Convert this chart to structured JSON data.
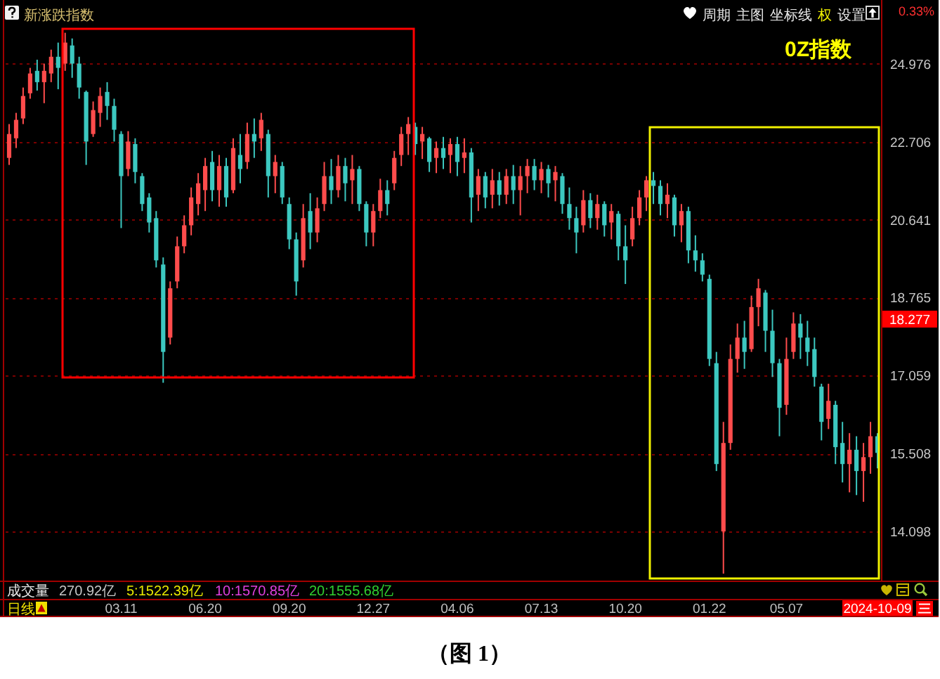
{
  "chart_data": {
    "type": "candlestick",
    "title": "新涨跌指数",
    "subtitle": "0Z指数",
    "categories": [
      null,
      null,
      null,
      null,
      null,
      null,
      null,
      null,
      null,
      null,
      null,
      null,
      null,
      null,
      null,
      null,
      "03.11",
      null,
      null,
      null,
      null,
      null,
      null,
      null,
      null,
      null,
      null,
      null,
      "06.20",
      null,
      null,
      null,
      null,
      null,
      null,
      null,
      null,
      null,
      null,
      null,
      "09.20",
      null,
      null,
      null,
      null,
      null,
      null,
      null,
      null,
      null,
      null,
      null,
      "12.27",
      null,
      null,
      null,
      null,
      null,
      null,
      null,
      null,
      null,
      null,
      null,
      "04.06",
      null,
      null,
      null,
      null,
      null,
      null,
      null,
      null,
      null,
      null,
      null,
      "07.13",
      null,
      null,
      null,
      null,
      null,
      null,
      null,
      null,
      null,
      null,
      null,
      "10.20",
      null,
      null,
      null,
      null,
      null,
      null,
      null,
      null,
      null,
      null,
      null,
      "01.22",
      null,
      null,
      null,
      null,
      null,
      null,
      null,
      null,
      null,
      null,
      "05.07",
      null,
      null,
      null,
      null,
      null,
      null,
      null,
      null,
      null,
      null,
      null,
      null,
      "2024-10-09"
    ],
    "ohlc": [
      [
        22.26,
        23.2,
        22.07,
        22.92
      ],
      [
        22.8,
        23.52,
        22.53,
        23.32
      ],
      [
        23.36,
        24.26,
        23.2,
        24.01
      ],
      [
        24.09,
        24.85,
        23.93,
        24.68
      ],
      [
        24.76,
        25.1,
        24.17,
        24.42
      ],
      [
        24.42,
        24.98,
        23.8,
        24.76
      ],
      [
        24.68,
        25.41,
        24.42,
        25.19
      ],
      [
        25.19,
        25.63,
        24.21,
        24.85
      ],
      [
        24.98,
        25.94,
        24.76,
        25.63
      ],
      [
        25.54,
        25.76,
        24.55,
        24.98
      ],
      [
        24.98,
        25.19,
        23.93,
        24.26
      ],
      [
        24.13,
        24.17,
        22.07,
        22.71
      ],
      [
        22.92,
        23.85,
        22.84,
        23.6
      ],
      [
        23.52,
        24.26,
        23.12,
        24.01
      ],
      [
        24.13,
        24.42,
        23.32,
        23.72
      ],
      [
        23.72,
        23.93,
        22.71,
        23.04
      ],
      [
        22.92,
        23.0,
        20.43,
        21.77
      ],
      [
        21.96,
        23.0,
        21.77,
        22.71
      ],
      [
        22.64,
        22.8,
        21.58,
        21.88
      ],
      [
        21.77,
        21.85,
        20.86,
        21.04
      ],
      [
        21.21,
        21.32,
        20.32,
        20.57
      ],
      [
        20.68,
        20.86,
        19.47,
        19.64
      ],
      [
        19.54,
        19.71,
        16.91,
        17.56
      ],
      [
        17.87,
        19.14,
        17.72,
        18.98
      ],
      [
        19.14,
        20.22,
        18.98,
        19.98
      ],
      [
        19.98,
        20.75,
        19.81,
        20.5
      ],
      [
        20.5,
        21.47,
        20.25,
        21.21
      ],
      [
        21.04,
        21.85,
        20.75,
        21.58
      ],
      [
        21.4,
        22.26,
        20.86,
        22.04
      ],
      [
        22.15,
        22.45,
        21.11,
        21.4
      ],
      [
        21.4,
        22.34,
        20.97,
        22.04
      ],
      [
        22.04,
        22.26,
        20.97,
        21.21
      ],
      [
        21.4,
        22.8,
        21.32,
        22.53
      ],
      [
        22.34,
        22.92,
        21.58,
        21.96
      ],
      [
        22.15,
        23.24,
        21.96,
        22.92
      ],
      [
        22.92,
        23.36,
        22.26,
        22.71
      ],
      [
        22.8,
        23.52,
        22.45,
        23.32
      ],
      [
        22.92,
        23.04,
        21.21,
        21.77
      ],
      [
        21.77,
        22.34,
        21.32,
        22.15
      ],
      [
        22.04,
        22.15,
        21.04,
        21.21
      ],
      [
        21.04,
        21.21,
        19.91,
        20.15
      ],
      [
        20.15,
        20.32,
        18.81,
        19.14
      ],
      [
        19.64,
        21.04,
        19.47,
        20.68
      ],
      [
        20.86,
        21.32,
        19.91,
        20.32
      ],
      [
        20.32,
        21.21,
        20.08,
        20.93
      ],
      [
        21.04,
        22.15,
        20.86,
        21.77
      ],
      [
        21.77,
        22.23,
        21.04,
        21.4
      ],
      [
        21.4,
        22.34,
        21.21,
        22.04
      ],
      [
        22.04,
        22.26,
        21.11,
        21.58
      ],
      [
        21.66,
        22.34,
        21.04,
        21.96
      ],
      [
        21.96,
        22.04,
        20.86,
        21.04
      ],
      [
        21.04,
        21.11,
        19.98,
        20.32
      ],
      [
        20.32,
        21.04,
        19.98,
        20.86
      ],
      [
        20.86,
        21.7,
        20.68,
        21.4
      ],
      [
        21.4,
        21.66,
        20.75,
        21.04
      ],
      [
        21.58,
        22.45,
        21.4,
        22.26
      ],
      [
        22.34,
        23.12,
        22.04,
        22.92
      ],
      [
        22.92,
        23.4,
        22.34,
        23.2
      ],
      [
        23.12,
        23.24,
        22.34,
        22.64
      ],
      [
        22.71,
        23.12,
        22.23,
        22.92
      ],
      [
        22.8,
        22.84,
        21.88,
        22.15
      ],
      [
        22.26,
        22.71,
        21.85,
        22.53
      ],
      [
        22.53,
        22.84,
        21.96,
        22.26
      ],
      [
        22.34,
        22.8,
        21.85,
        22.64
      ],
      [
        22.64,
        22.84,
        21.77,
        22.15
      ],
      [
        22.26,
        22.8,
        21.85,
        22.41
      ],
      [
        22.41,
        22.53,
        20.57,
        21.21
      ],
      [
        21.28,
        21.96,
        20.86,
        21.77
      ],
      [
        21.77,
        21.88,
        20.93,
        21.21
      ],
      [
        21.28,
        21.96,
        20.93,
        21.66
      ],
      [
        21.66,
        21.88,
        21.0,
        21.28
      ],
      [
        21.28,
        21.96,
        21.04,
        21.77
      ],
      [
        21.77,
        22.07,
        21.04,
        21.4
      ],
      [
        21.4,
        22.04,
        20.75,
        21.77
      ],
      [
        21.77,
        22.23,
        21.32,
        22.04
      ],
      [
        22.04,
        22.23,
        21.4,
        21.66
      ],
      [
        21.66,
        22.15,
        21.32,
        21.96
      ],
      [
        21.96,
        22.07,
        21.21,
        21.58
      ],
      [
        21.66,
        22.04,
        21.11,
        21.88
      ],
      [
        21.77,
        21.85,
        20.79,
        21.04
      ],
      [
        21.04,
        21.47,
        20.39,
        20.68
      ],
      [
        20.68,
        20.97,
        19.81,
        20.32
      ],
      [
        20.5,
        21.4,
        20.32,
        21.14
      ],
      [
        21.14,
        21.32,
        20.43,
        20.68
      ],
      [
        20.68,
        21.28,
        20.39,
        21.04
      ],
      [
        21.04,
        21.11,
        20.22,
        20.5
      ],
      [
        20.57,
        21.04,
        20.15,
        20.86
      ],
      [
        20.79,
        20.86,
        19.64,
        19.98
      ],
      [
        19.98,
        20.5,
        19.08,
        19.64
      ],
      [
        20.15,
        20.97,
        19.98,
        20.68
      ],
      [
        20.68,
        21.4,
        20.5,
        21.21
      ],
      [
        21.21,
        21.77,
        20.86,
        21.66
      ],
      [
        21.66,
        21.88,
        21.04,
        21.51
      ],
      [
        21.51,
        21.66,
        20.75,
        21.04
      ],
      [
        21.04,
        21.58,
        20.68,
        21.28
      ],
      [
        21.21,
        21.28,
        20.22,
        20.5
      ],
      [
        20.5,
        21.04,
        20.08,
        20.86
      ],
      [
        20.86,
        20.97,
        19.57,
        19.88
      ],
      [
        19.88,
        20.25,
        19.37,
        19.64
      ],
      [
        19.64,
        19.81,
        19.14,
        19.3
      ],
      [
        19.2,
        19.3,
        17.26,
        17.41
      ],
      [
        17.32,
        17.56,
        15.18,
        15.31
      ],
      [
        14.1,
        16.12,
        13.39,
        15.71
      ],
      [
        15.71,
        17.72,
        15.58,
        17.41
      ],
      [
        17.41,
        18.18,
        17.12,
        17.87
      ],
      [
        17.87,
        18.24,
        17.2,
        17.56
      ],
      [
        17.62,
        18.81,
        17.56,
        18.55
      ],
      [
        18.55,
        19.2,
        18.12,
        18.98
      ],
      [
        18.88,
        18.94,
        17.56,
        18.02
      ],
      [
        18.02,
        18.49,
        17.03,
        17.32
      ],
      [
        17.32,
        17.41,
        15.84,
        16.4
      ],
      [
        16.46,
        17.87,
        16.26,
        17.41
      ],
      [
        17.56,
        18.43,
        17.41,
        18.18
      ],
      [
        18.18,
        18.39,
        17.41,
        17.87
      ],
      [
        17.87,
        18.24,
        17.26,
        17.56
      ],
      [
        17.62,
        17.87,
        16.83,
        17.03
      ],
      [
        16.83,
        16.89,
        15.76,
        16.12
      ],
      [
        16.18,
        16.89,
        15.98,
        16.54
      ],
      [
        16.46,
        16.54,
        15.31,
        15.63
      ],
      [
        15.71,
        16.12,
        14.97,
        15.31
      ],
      [
        15.31,
        15.9,
        14.79,
        15.58
      ],
      [
        15.58,
        15.84,
        14.74,
        15.18
      ],
      [
        15.18,
        15.71,
        14.62,
        15.44
      ],
      [
        15.44,
        16.12,
        15.13,
        15.84
      ],
      [
        15.84,
        15.9,
        15.23,
        15.52
      ]
    ],
    "ylim": [
      13.3,
      27
    ],
    "yticks": [
      14.098,
      15.508,
      17.059,
      18.765,
      20.641,
      22.706,
      24.976
    ],
    "log": true,
    "grid": "y",
    "annotations": [
      "周期",
      "主图",
      "坐标线",
      "权",
      "设置",
      "0.33%",
      "18.277",
      "成交量",
      "270.92亿",
      "5:1522.39亿",
      "10:1570.85亿",
      "20:1555.68亿",
      "日线",
      "（图 1）"
    ]
  }
}
